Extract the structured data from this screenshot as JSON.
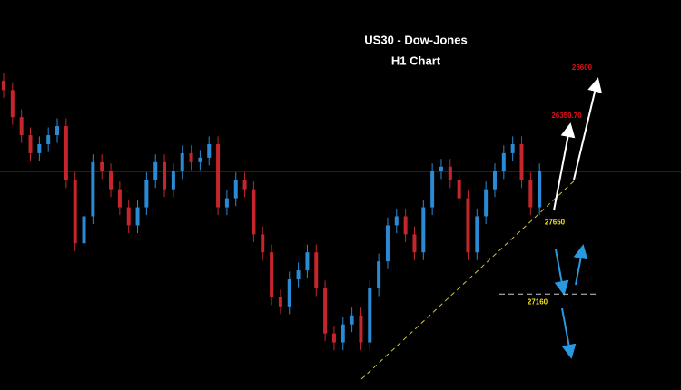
{
  "chart_data": {
    "type": "candlestick",
    "title": "US30 - Dow-Jones",
    "subtitle": "H1 Chart",
    "ylim": [
      26560,
      29070
    ],
    "open": [
      28550,
      28490,
      28316,
      28200,
      28084,
      28142,
      28200,
      28258,
      27910,
      27504,
      27678,
      28026,
      27968,
      27852,
      27736,
      27620,
      27736,
      27910,
      28026,
      27852,
      27968,
      28084,
      28026,
      28055,
      28142,
      27736,
      27794,
      27910,
      27852,
      27562,
      27446,
      27156,
      27098,
      27272,
      27330,
      27446,
      27214,
      26924,
      26866,
      26982,
      27040,
      26866,
      27214,
      27388,
      27620,
      27678,
      27562,
      27446,
      27736,
      27968,
      27997,
      27910,
      27794,
      27446,
      27678,
      27852,
      27968,
      28084,
      28142,
      27910,
      27736
    ],
    "high": [
      28600,
      28540,
      28366,
      28250,
      28192,
      28250,
      28308,
      28308,
      27960,
      27728,
      28076,
      28076,
      28018,
      27902,
      27786,
      27786,
      27960,
      28076,
      28076,
      28018,
      28134,
      28134,
      28105,
      28192,
      28192,
      27844,
      27960,
      27960,
      27902,
      27612,
      27496,
      27206,
      27322,
      27380,
      27496,
      27496,
      27264,
      26974,
      27032,
      27090,
      27090,
      27264,
      27438,
      27670,
      27728,
      27728,
      27612,
      27786,
      28018,
      28047,
      28047,
      27960,
      27844,
      27728,
      27902,
      28018,
      28134,
      28192,
      28192,
      27960,
      28018
    ],
    "low": [
      28440,
      28266,
      28150,
      28034,
      28034,
      28092,
      28150,
      27860,
      27454,
      27454,
      27628,
      27918,
      27802,
      27686,
      27570,
      27570,
      27686,
      27860,
      27802,
      27802,
      27918,
      27976,
      27976,
      28005,
      27686,
      27686,
      27744,
      27802,
      27512,
      27396,
      27106,
      27048,
      27048,
      27222,
      27280,
      27164,
      26874,
      26816,
      26816,
      26932,
      26816,
      26816,
      27164,
      27338,
      27570,
      27512,
      27396,
      27396,
      27686,
      27918,
      27860,
      27744,
      27396,
      27396,
      27628,
      27802,
      27918,
      28034,
      27860,
      27686,
      27686
    ],
    "close": [
      28490,
      28316,
      28200,
      28084,
      28142,
      28200,
      28258,
      27910,
      27504,
      27678,
      28026,
      27968,
      27852,
      27736,
      27620,
      27736,
      27910,
      28026,
      27852,
      27968,
      28084,
      28026,
      28055,
      28142,
      27736,
      27794,
      27910,
      27852,
      27562,
      27446,
      27156,
      27098,
      27272,
      27330,
      27446,
      27214,
      26924,
      26866,
      26982,
      27040,
      26866,
      27214,
      27388,
      27620,
      27678,
      27562,
      27446,
      27736,
      27968,
      27997,
      27910,
      27794,
      27446,
      27678,
      27852,
      27968,
      28084,
      28142,
      27910,
      27736,
      27968
    ],
    "up_color": "#2a8ad4",
    "down_color": "#c4262b",
    "reference_line": 27968,
    "levels": [
      27650,
      27160
    ],
    "target_labels": [
      "26600",
      "26350.70"
    ]
  }
}
